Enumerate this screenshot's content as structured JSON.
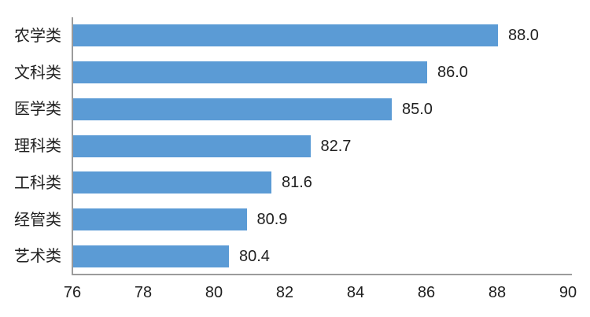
{
  "chart_data": {
    "type": "bar",
    "orientation": "horizontal",
    "title": "",
    "xlabel": "",
    "ylabel": "",
    "categories": [
      "农学类",
      "文科类",
      "医学类",
      "理科类",
      "工科类",
      "经管类",
      "艺术类"
    ],
    "values": [
      88.0,
      86.0,
      85.0,
      82.7,
      81.6,
      80.9,
      80.4
    ],
    "value_labels": [
      "88.0",
      "86.0",
      "85.0",
      "82.7",
      "81.6",
      "80.9",
      "80.4"
    ],
    "xlim": [
      76,
      90
    ],
    "xticks": [
      "76",
      "78",
      "80",
      "82",
      "84",
      "86",
      "88",
      "90"
    ],
    "grid": false,
    "legend": false,
    "colors": {
      "bar": "#5B9BD5",
      "axis": "#9B9B9B",
      "text": "#1F1F1F"
    }
  }
}
